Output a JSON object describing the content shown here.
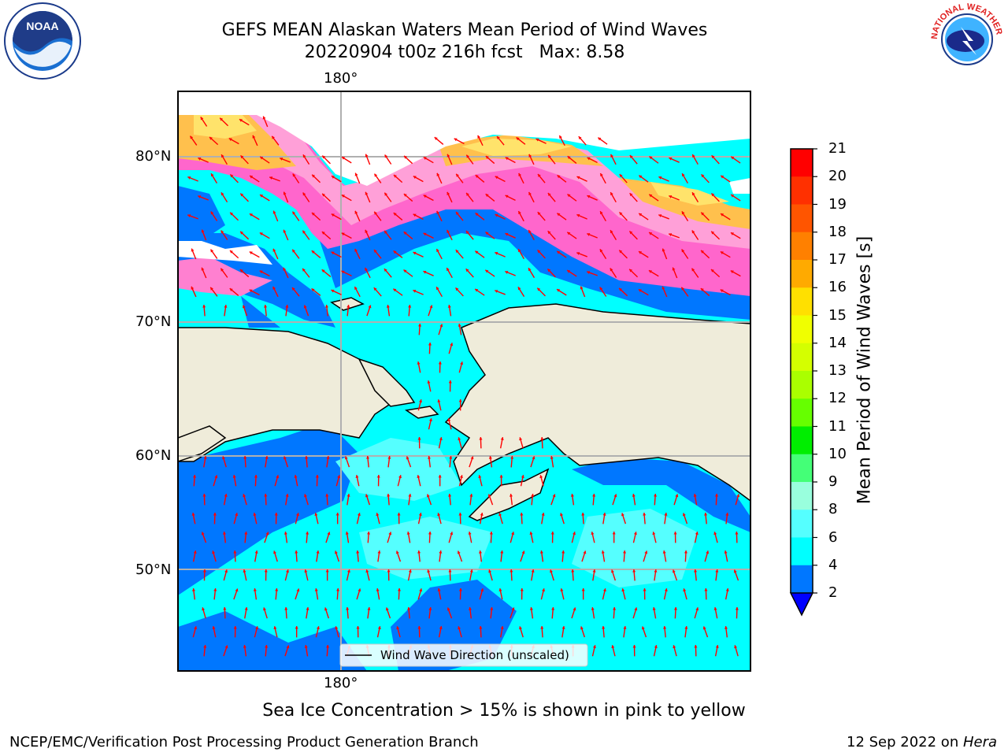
{
  "title": {
    "line1": "GEFS MEAN Alaskan Waters Mean Period of Wind Waves",
    "line2": "20220904 t00z 216h fcst   Max: 8.58"
  },
  "map": {
    "lon_label_top": "180°",
    "lon_label_bottom": "180°",
    "lat_labels": [
      "80°N",
      "70°N",
      "60°N",
      "50°N"
    ],
    "legend_text": "Wind Wave Direction (unscaled)",
    "arrow_color": "#ff0000",
    "land_color": "#efecda",
    "ice_colors": [
      "#ff69b4",
      "#ff99cc",
      "#ffc04d",
      "#ffe36b"
    ]
  },
  "colorbar": {
    "label": "Mean Period of Wind Waves [s]",
    "ticks": [
      "21",
      "20",
      "19",
      "18",
      "17",
      "16",
      "15",
      "14",
      "13",
      "12",
      "11",
      "10",
      "9",
      "8",
      "6",
      "4",
      "2"
    ],
    "colors": [
      "#ff0000",
      "#ff3000",
      "#ff5500",
      "#ff8000",
      "#ffaa00",
      "#ffe000",
      "#f0ff00",
      "#d4ff00",
      "#aaff00",
      "#66ff00",
      "#00ee00",
      "#44ff77",
      "#99ffdd",
      "#55ffff",
      "#00ffff",
      "#0077ff"
    ],
    "extend_color": "#0000ff"
  },
  "logos": {
    "noaa_text": "NOAA",
    "nws_text": "NATIONAL WEATHER SERVICE"
  },
  "footer": {
    "note": "Sea Ice Concentration > 15% is shown in pink to yellow",
    "left": "NCEP/EMC/Verification Post Processing Product Generation Branch",
    "right_prefix": "12 Sep 2022 on ",
    "right_host": "Hera"
  }
}
